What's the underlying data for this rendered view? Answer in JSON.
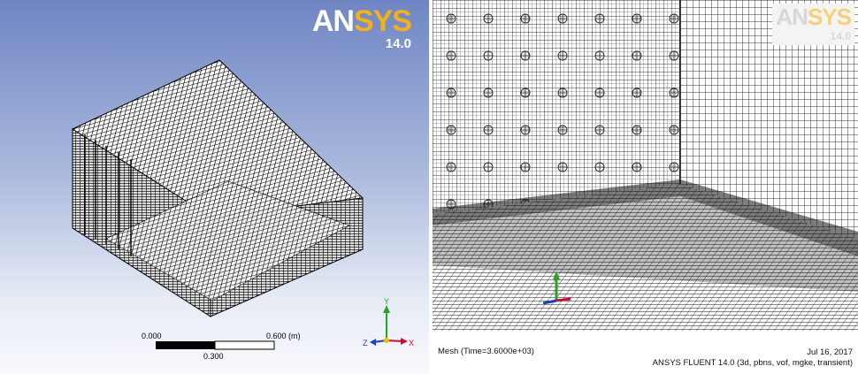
{
  "left_view": {
    "logo": {
      "brand_part1": "AN",
      "brand_part2": "SYS",
      "version": "14.0"
    },
    "scale_bar": {
      "start_label": "0.000",
      "end_label": "0.600 (m)",
      "mid_label": "0.300"
    },
    "triad": {
      "y_label": "Y",
      "x_label": "X",
      "z_label": "Z"
    },
    "colors": {
      "bg_top": "#6f86c4",
      "bg_bottom": "#f8f9fc",
      "mesh": "#000000"
    }
  },
  "right_view": {
    "logo": {
      "brand_part1": "AN",
      "brand_part2": "SYS",
      "version": "14.0"
    },
    "status_left": "Mesh  (Time=3.6000e+03)",
    "status_date": "Jul 16, 2017",
    "status_solver": "ANSYS FLUENT 14.0 (3d, pbns, vof, mgke, transient)"
  }
}
